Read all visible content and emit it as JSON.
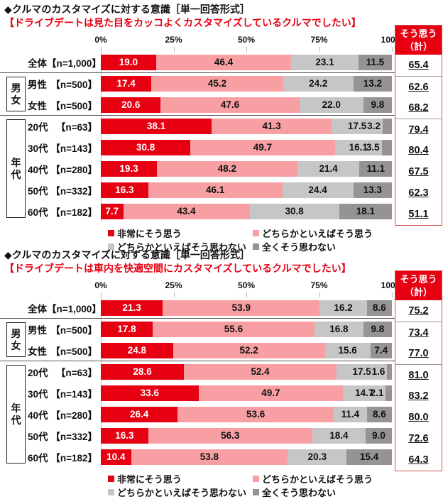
{
  "colors": {
    "strong_red": "#e60012",
    "pink": "#f79fa3",
    "light_gray": "#c6c6c6",
    "dark_gray": "#949494",
    "total_box_border": "#d05050",
    "subtitle_red": "#e60012"
  },
  "axis_ticks": [
    "0%",
    "25%",
    "50%",
    "75%",
    "100%"
  ],
  "total_header": "そう思う\n（計）",
  "legend_labels": [
    "非常にそう思う",
    "どちらかといえばそう思う",
    "どちらかといえばそう思わない",
    "全くそう思わない"
  ],
  "chart_data": [
    {
      "type": "bar",
      "stacked": true,
      "orientation": "horizontal",
      "title": "◆クルマのカスタマイズに対する意識［単一回答形式］",
      "subtitle": "【ドライブデートは見た目をカッコよくカスタマイズしているクルマでしたい】",
      "xlim": [
        0,
        100
      ],
      "x_ticks": [
        "0%",
        "25%",
        "50%",
        "75%",
        "100%"
      ],
      "legend_position": "bottom",
      "categories": [
        "全体【n=1,000】",
        "男性【n=500】",
        "女性【n=500】",
        "20代【n=63】",
        "30代【n=143】",
        "40代【n=280】",
        "50代【n=332】",
        "60代【n=182】"
      ],
      "row_labels": [
        {
          "name": "全体",
          "n": "【n=1,000】"
        },
        {
          "name": "男性",
          "n": "【n=500】"
        },
        {
          "name": "女性",
          "n": "【n=500】"
        },
        {
          "name": "20代",
          "n": "【n=63】"
        },
        {
          "name": "30代",
          "n": "【n=143】"
        },
        {
          "name": "40代",
          "n": "【n=280】"
        },
        {
          "name": "50代",
          "n": "【n=332】"
        },
        {
          "name": "60代",
          "n": "【n=182】"
        }
      ],
      "groups": [
        {
          "label": "男女",
          "from": 1,
          "to": 2
        },
        {
          "label": "年代",
          "from": 3,
          "to": 7
        }
      ],
      "series": [
        {
          "name": "非常にそう思う",
          "color": "#e60012",
          "values": [
            19.0,
            17.4,
            20.6,
            38.1,
            30.8,
            19.3,
            16.3,
            7.7
          ]
        },
        {
          "name": "どちらかといえばそう思う",
          "color": "#f79fa3",
          "values": [
            46.4,
            45.2,
            47.6,
            41.3,
            49.7,
            48.2,
            46.1,
            43.4
          ]
        },
        {
          "name": "どちらかといえばそう思わない",
          "color": "#c6c6c6",
          "values": [
            23.1,
            24.2,
            22.0,
            17.5,
            16.1,
            21.4,
            24.4,
            30.8
          ]
        },
        {
          "name": "全くそう思わない",
          "color": "#949494",
          "values": [
            11.5,
            13.2,
            9.8,
            3.2,
            3.5,
            11.1,
            13.3,
            18.1
          ]
        }
      ],
      "totals_header": "そう思う（計）",
      "totals": [
        "65.4",
        "62.6",
        "68.2",
        "79.4",
        "80.4",
        "67.5",
        "62.3",
        "51.1"
      ]
    },
    {
      "type": "bar",
      "stacked": true,
      "orientation": "horizontal",
      "title": "◆クルマのカスタマイズに対する意識［単一回答形式］",
      "subtitle": "【ドライブデートは車内を快適空間にカスタマイズしているクルマでしたい】",
      "xlim": [
        0,
        100
      ],
      "x_ticks": [
        "0%",
        "25%",
        "50%",
        "75%",
        "100%"
      ],
      "legend_position": "bottom",
      "categories": [
        "全体【n=1,000】",
        "男性【n=500】",
        "女性【n=500】",
        "20代【n=63】",
        "30代【n=143】",
        "40代【n=280】",
        "50代【n=332】",
        "60代【n=182】"
      ],
      "row_labels": [
        {
          "name": "全体",
          "n": "【n=1,000】"
        },
        {
          "name": "男性",
          "n": "【n=500】"
        },
        {
          "name": "女性",
          "n": "【n=500】"
        },
        {
          "name": "20代",
          "n": "【n=63】"
        },
        {
          "name": "30代",
          "n": "【n=143】"
        },
        {
          "name": "40代",
          "n": "【n=280】"
        },
        {
          "name": "50代",
          "n": "【n=332】"
        },
        {
          "name": "60代",
          "n": "【n=182】"
        }
      ],
      "groups": [
        {
          "label": "男女",
          "from": 1,
          "to": 2
        },
        {
          "label": "年代",
          "from": 3,
          "to": 7
        }
      ],
      "series": [
        {
          "name": "非常にそう思う",
          "color": "#e60012",
          "values": [
            21.3,
            17.8,
            24.8,
            28.6,
            33.6,
            26.4,
            16.3,
            10.4
          ]
        },
        {
          "name": "どちらかといえばそう思う",
          "color": "#f79fa3",
          "values": [
            53.9,
            55.6,
            52.2,
            52.4,
            49.7,
            53.6,
            56.3,
            53.8
          ]
        },
        {
          "name": "どちらかといえばそう思わない",
          "color": "#c6c6c6",
          "values": [
            16.2,
            16.8,
            15.6,
            17.5,
            14.7,
            11.4,
            18.4,
            20.3
          ]
        },
        {
          "name": "全くそう思わない",
          "color": "#949494",
          "values": [
            8.6,
            9.8,
            7.4,
            1.6,
            2.1,
            8.6,
            9.0,
            15.4
          ]
        }
      ],
      "totals_header": "そう思う（計）",
      "totals": [
        "75.2",
        "73.4",
        "77.0",
        "81.0",
        "83.2",
        "80.0",
        "72.6",
        "64.3"
      ]
    }
  ]
}
